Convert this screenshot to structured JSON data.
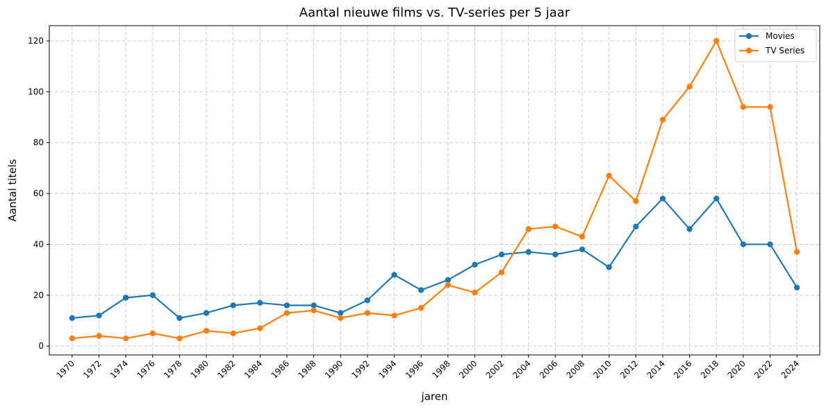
{
  "chart_data": {
    "type": "line",
    "title": "Aantal nieuwe films vs. TV-series per 5 jaar",
    "xlabel": "jaren",
    "ylabel": "Aantal titels",
    "x": [
      1970,
      1972,
      1974,
      1976,
      1978,
      1980,
      1982,
      1984,
      1986,
      1988,
      1990,
      1992,
      1994,
      1996,
      1998,
      2000,
      2002,
      2004,
      2006,
      2008,
      2010,
      2012,
      2014,
      2016,
      2018,
      2020,
      2022,
      2024
    ],
    "series": [
      {
        "name": "Movies",
        "color": "#1f77b4",
        "values": [
          11,
          12,
          19,
          20,
          11,
          13,
          16,
          17,
          16,
          16,
          13,
          18,
          28,
          22,
          26,
          32,
          36,
          37,
          36,
          38,
          31,
          47,
          58,
          46,
          58,
          40,
          40,
          23
        ]
      },
      {
        "name": "TV Series",
        "color": "#ff7f0e",
        "values": [
          3,
          4,
          3,
          5,
          3,
          6,
          5,
          7,
          13,
          14,
          11,
          13,
          12,
          15,
          24,
          21,
          29,
          46,
          47,
          43,
          67,
          57,
          89,
          102,
          120,
          94,
          94,
          37
        ]
      }
    ],
    "xlim": [
      1968.3,
      2025.7
    ],
    "ylim": [
      -3.5,
      126
    ],
    "yticks": [
      0,
      20,
      40,
      60,
      80,
      100,
      120
    ],
    "grid": true,
    "legend_position": "top-right"
  }
}
